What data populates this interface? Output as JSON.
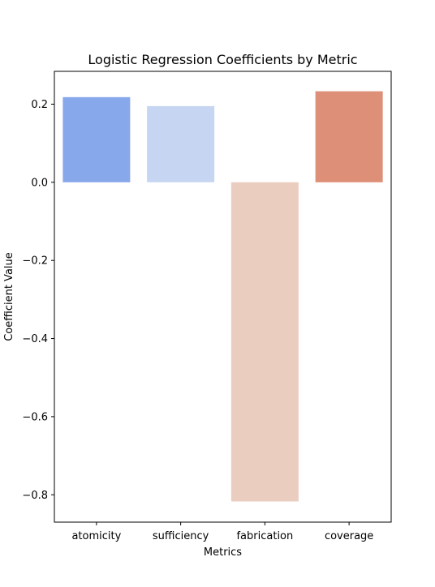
{
  "chart_data": {
    "type": "bar",
    "title": "Logistic Regression Coefficients by Metric",
    "xlabel": "Metrics",
    "ylabel": "Coefficient Value",
    "categories": [
      "atomicity",
      "sufficiency",
      "fabrication",
      "coverage"
    ],
    "values": [
      0.218,
      0.195,
      -0.817,
      0.233
    ],
    "colors": [
      "#88a8ec",
      "#c6d5f1",
      "#ebcdc0",
      "#de8f77"
    ],
    "ylim": [
      -0.87,
      0.284
    ],
    "yticks": [
      0.2,
      0.0,
      -0.2,
      -0.4,
      -0.6,
      -0.8
    ],
    "ytick_labels": [
      "0.2",
      "0.0",
      "−0.2",
      "−0.4",
      "−0.6",
      "−0.8"
    ],
    "grid": false,
    "legend": "none"
  }
}
